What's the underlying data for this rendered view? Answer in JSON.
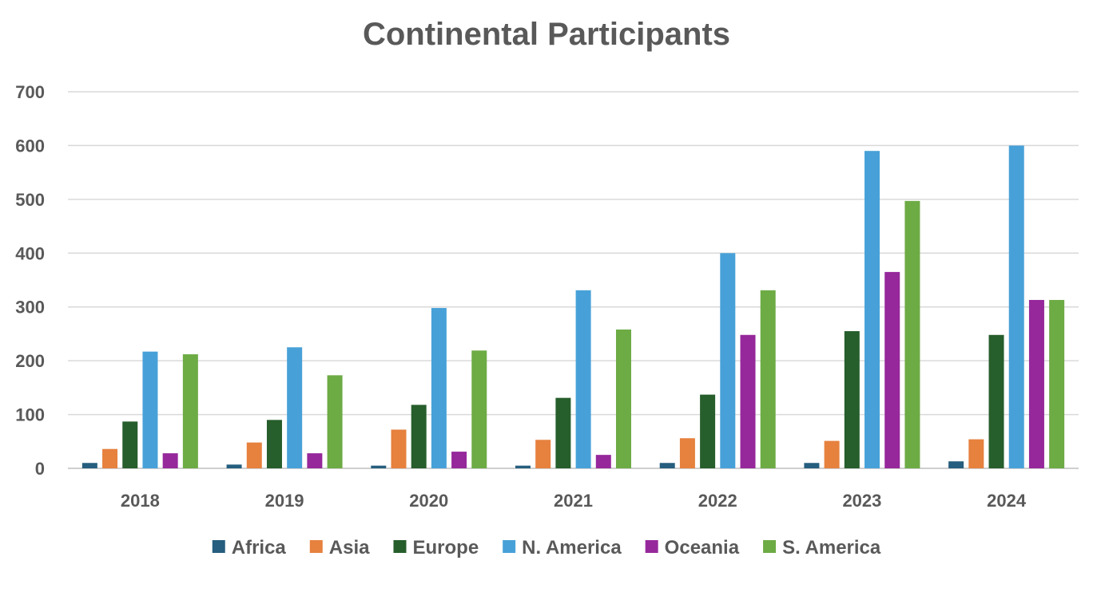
{
  "chart_data": {
    "type": "bar",
    "title": "Continental Participants",
    "xlabel": "",
    "ylabel": "",
    "categories": [
      "2018",
      "2019",
      "2020",
      "2021",
      "2022",
      "2023",
      "2024"
    ],
    "ylim": [
      0,
      700
    ],
    "yticks": [
      0,
      100,
      200,
      300,
      400,
      500,
      600,
      700
    ],
    "grid": true,
    "legend_position": "bottom",
    "series": [
      {
        "name": "Africa",
        "color": "#255e7e",
        "values": [
          10,
          7,
          5,
          5,
          10,
          10,
          13
        ]
      },
      {
        "name": "Asia",
        "color": "#e6813e",
        "values": [
          36,
          48,
          72,
          53,
          56,
          51,
          54
        ]
      },
      {
        "name": "Europe",
        "color": "#265e2c",
        "values": [
          87,
          90,
          118,
          131,
          137,
          255,
          248
        ]
      },
      {
        "name": "N. America",
        "color": "#47a1d8",
        "values": [
          217,
          225,
          298,
          331,
          400,
          590,
          600
        ]
      },
      {
        "name": "Oceania",
        "color": "#96289b",
        "values": [
          28,
          28,
          31,
          25,
          248,
          365,
          313
        ]
      },
      {
        "name": "S. America",
        "color": "#6dab45",
        "values": [
          212,
          173,
          219,
          258,
          331,
          497,
          313
        ]
      }
    ]
  }
}
